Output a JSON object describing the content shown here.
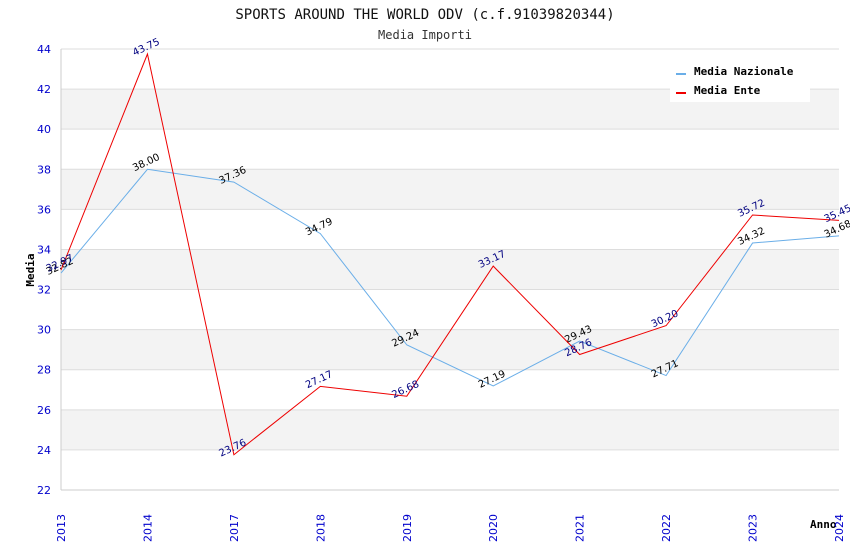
{
  "chart_data": {
    "type": "line",
    "title": "SPORTS AROUND THE WORLD ODV (c.f.91039820344)",
    "subtitle": "Media Importi",
    "xlabel": "Anno",
    "ylabel": "Media",
    "ylim": [
      22,
      44
    ],
    "yticks": [
      "22",
      "24",
      "26",
      "28",
      "30",
      "32",
      "34",
      "36",
      "38",
      "40",
      "42",
      "44"
    ],
    "categories": [
      "2013",
      "2014",
      "2017",
      "2018",
      "2019",
      "2020",
      "2021",
      "2022",
      "2023",
      "2024"
    ],
    "legend_position": "top-right",
    "series": [
      {
        "name": "Media Nazionale",
        "color": "#6aaee8",
        "label_color": "#000000",
        "values": [
          32.82,
          38.0,
          37.36,
          34.79,
          29.24,
          27.19,
          29.43,
          27.71,
          34.32,
          34.68
        ],
        "labels": [
          "32.82",
          "38.00",
          "37.36",
          "34.79",
          "29.24",
          "27.19",
          "29.43",
          "27.71",
          "34.32",
          "34.68"
        ]
      },
      {
        "name": "Media Ente",
        "color": "#ee0000",
        "label_color": "#000080",
        "values": [
          32.97,
          43.75,
          23.76,
          27.17,
          26.68,
          33.17,
          28.76,
          30.2,
          35.72,
          35.45
        ],
        "labels": [
          "32.97",
          "43.75",
          "23.76",
          "27.17",
          "26.68",
          "33.17",
          "28.76",
          "30.20",
          "35.72",
          "35.45"
        ]
      }
    ]
  }
}
